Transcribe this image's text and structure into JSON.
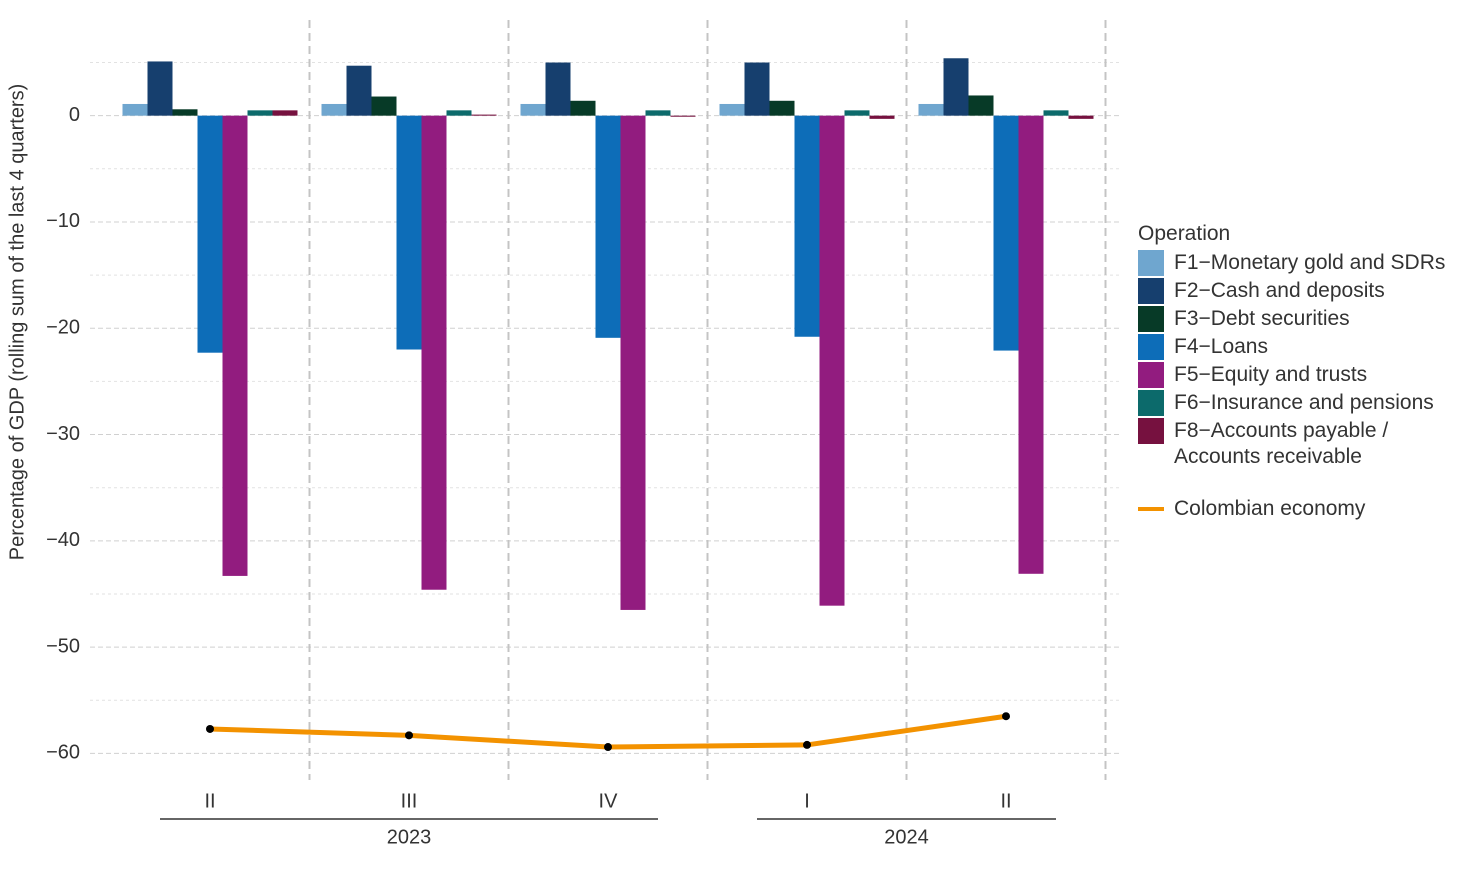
{
  "chart_data": {
    "type": "bar",
    "y_label": "Percentage of GDP (rolling sum of the last 4 quarters)",
    "legend_title": "Operation",
    "groups": [
      {
        "name": "2023",
        "categories": [
          "II",
          "III",
          "IV"
        ]
      },
      {
        "name": "2024",
        "categories": [
          "I",
          "II"
        ]
      }
    ],
    "ylim": [
      -62.5,
      9
    ],
    "yticks": [
      {
        "value": 0,
        "label": "0"
      },
      {
        "value": -10,
        "label": "−10"
      },
      {
        "value": -20,
        "label": "−20"
      },
      {
        "value": -30,
        "label": "−30"
      },
      {
        "value": -40,
        "label": "−40"
      },
      {
        "value": -50,
        "label": "−50"
      },
      {
        "value": -60,
        "label": "−60"
      }
    ],
    "grid": true,
    "series": [
      {
        "name": "F1−Monetary gold and SDRs",
        "color": "#6fa6cf",
        "values": [
          1.1,
          1.1,
          1.1,
          1.1,
          1.1
        ]
      },
      {
        "name": "F2−Cash and deposits",
        "color": "#163f6e",
        "values": [
          5.1,
          4.7,
          5.0,
          5.0,
          5.4
        ]
      },
      {
        "name": "F3−Debt securities",
        "color": "#073a27",
        "values": [
          0.6,
          1.8,
          1.4,
          1.4,
          1.9
        ]
      },
      {
        "name": "F4−Loans",
        "color": "#0d6db8",
        "values": [
          -22.3,
          -22.0,
          -20.9,
          -20.8,
          -22.1
        ]
      },
      {
        "name": "F5−Equity and trusts",
        "color": "#921c7f",
        "values": [
          -43.3,
          -44.6,
          -46.5,
          -46.1,
          -43.1
        ]
      },
      {
        "name": "F6−Insurance and pensions",
        "color": "#0c6a6b",
        "values": [
          0.5,
          0.5,
          0.5,
          0.5,
          0.5
        ]
      },
      {
        "name": "F8−Accounts payable / Accounts receivable",
        "color": "#76113f",
        "values": [
          0.5,
          0.1,
          -0.1,
          -0.3,
          -0.3
        ]
      },
      {
        "name": "Colombian economy",
        "type": "line",
        "color": "#f39200",
        "values": [
          -57.7,
          -58.3,
          -59.4,
          -59.2,
          -56.5
        ]
      }
    ]
  }
}
